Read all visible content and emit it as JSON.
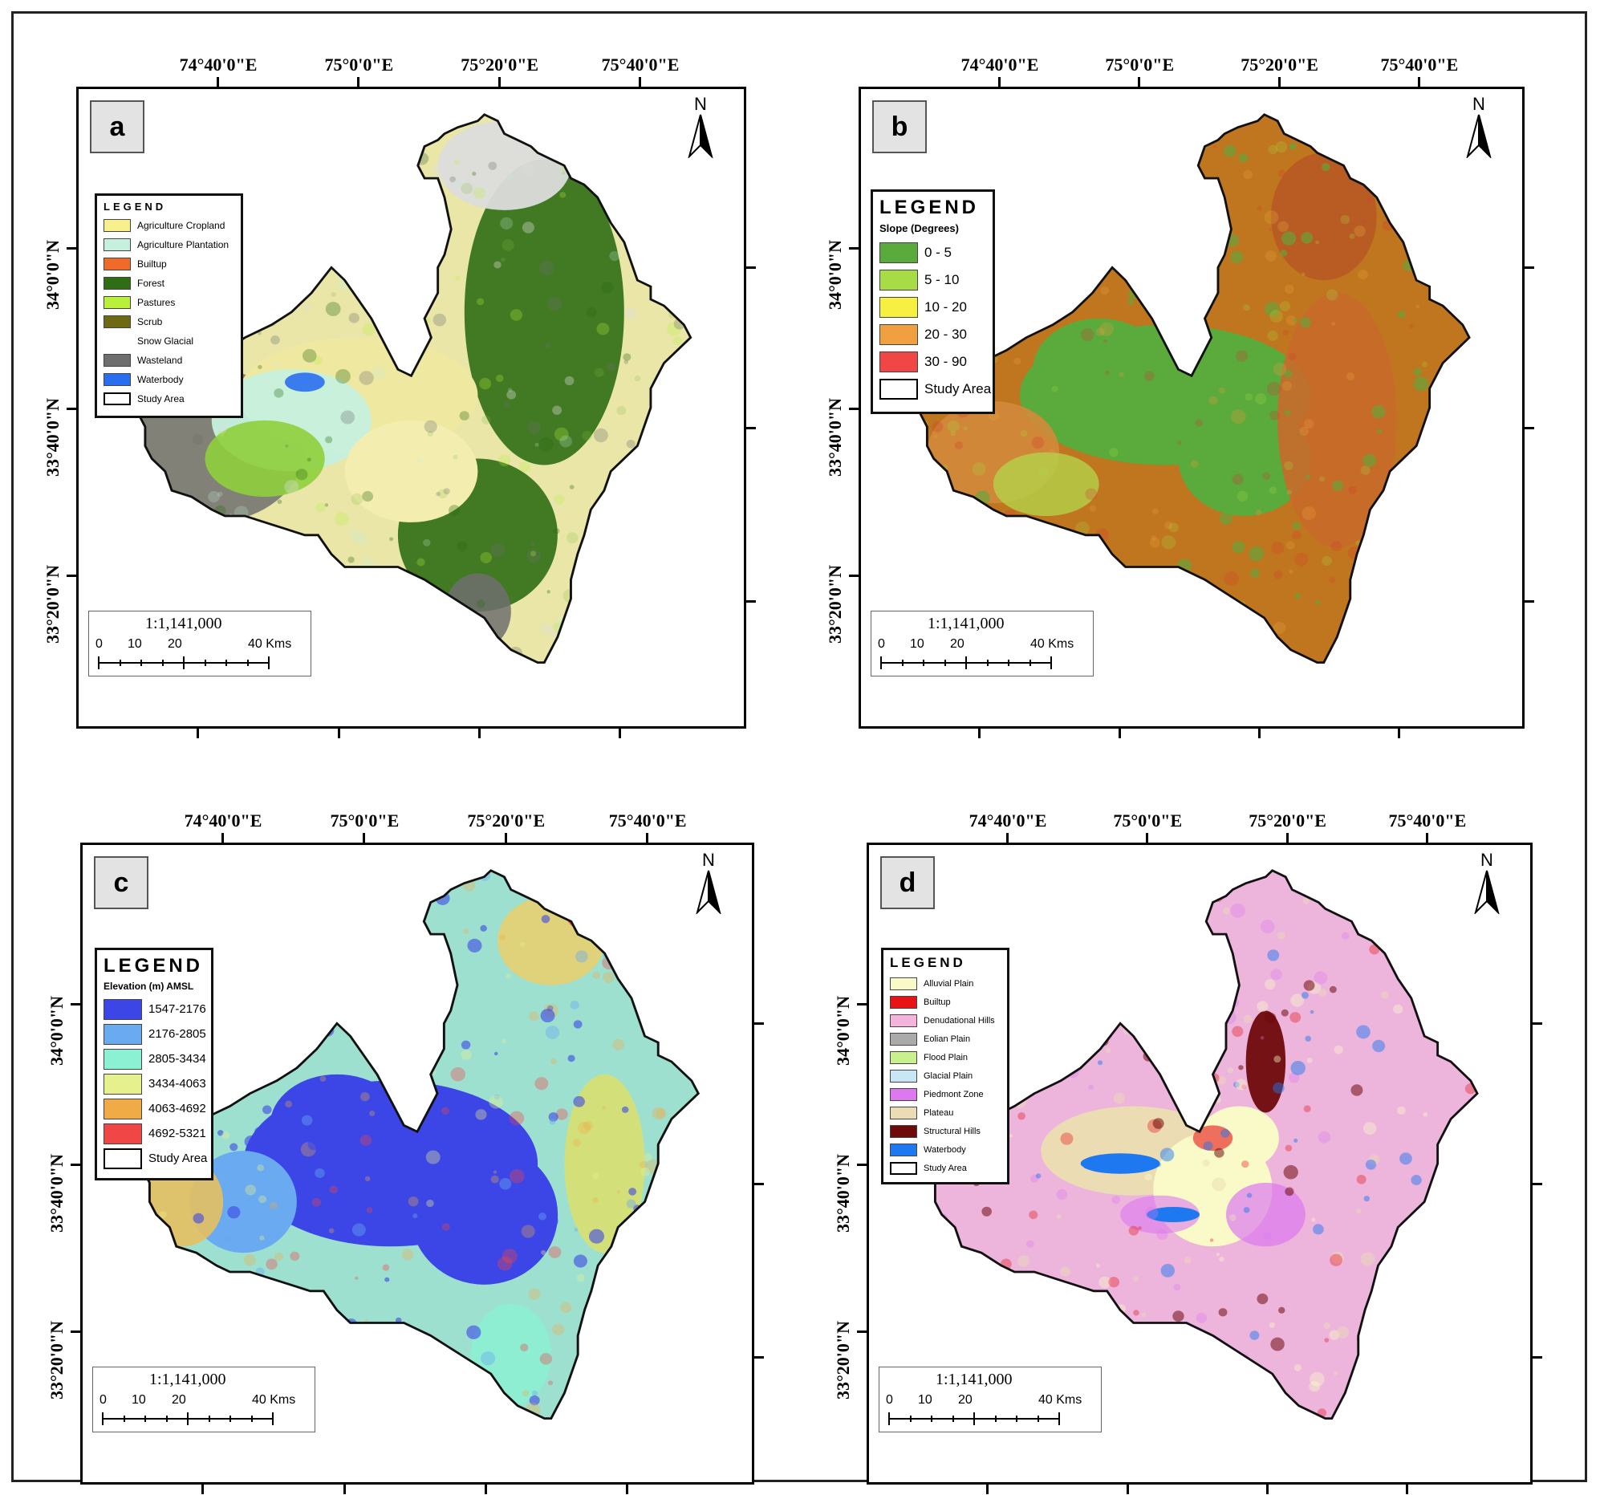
{
  "axes": {
    "lon_labels": [
      "74°40'0\"E",
      "75°0'0\"E",
      "75°20'0\"E",
      "75°40'0\"E"
    ],
    "lat_labels": [
      "34°0'0\"N",
      "33°40'0\"N",
      "33°20'0\"N"
    ]
  },
  "north_label": "N",
  "scale": {
    "ratio": "1:1,141,000",
    "ticks": [
      "0",
      "10",
      "20",
      "40 Kms"
    ]
  },
  "panels": [
    {
      "id": "a",
      "label": "a",
      "legend_title": "LEGEND",
      "legend_subtitle": "",
      "items": [
        {
          "label": "Agriculture Cropland",
          "color": "#f7f08c"
        },
        {
          "label": "Agriculture Plantation",
          "color": "#c5f0de"
        },
        {
          "label": "Builtup",
          "color": "#f06a2a"
        },
        {
          "label": "Forest",
          "color": "#2f6e14"
        },
        {
          "label": "Pastures",
          "color": "#b8f03c"
        },
        {
          "label": "Scrub",
          "color": "#6e6a14"
        },
        {
          "label": "Snow Glacial",
          "color": "#ffffff"
        },
        {
          "label": "Wasteland",
          "color": "#6e6e6e"
        },
        {
          "label": "Waterbody",
          "color": "#2a6ef0"
        },
        {
          "label": "Study Area",
          "color": "#ffffff"
        }
      ]
    },
    {
      "id": "b",
      "label": "b",
      "legend_title": "LEGEND",
      "legend_subtitle": "Slope (Degrees)",
      "items": [
        {
          "label": "0 - 5",
          "color": "#5aaa3c"
        },
        {
          "label": "5 - 10",
          "color": "#a8dc46"
        },
        {
          "label": "10 - 20",
          "color": "#f8f040"
        },
        {
          "label": "20 - 30",
          "color": "#f0a040"
        },
        {
          "label": "30 - 90",
          "color": "#f04646"
        },
        {
          "label": "Study Area",
          "color": "#ffffff"
        }
      ]
    },
    {
      "id": "c",
      "label": "c",
      "legend_title": "LEGEND",
      "legend_subtitle": "Elevation (m) AMSL",
      "items": [
        {
          "label": "1547-2176",
          "color": "#3c46e6"
        },
        {
          "label": "2176-2805",
          "color": "#6aaaf0"
        },
        {
          "label": "2805-3434",
          "color": "#8cf0d2"
        },
        {
          "label": "3434-4063",
          "color": "#e6f08c"
        },
        {
          "label": "4063-4692",
          "color": "#f0aa46"
        },
        {
          "label": "4692-5321",
          "color": "#f04646"
        },
        {
          "label": "Study Area",
          "color": "#ffffff"
        }
      ]
    },
    {
      "id": "d",
      "label": "d",
      "legend_title": "LEGEND",
      "legend_subtitle": "",
      "items": [
        {
          "label": "Alluvial Plain",
          "color": "#fafac8"
        },
        {
          "label": "Builtup",
          "color": "#e61414"
        },
        {
          "label": "Denudational Hills",
          "color": "#f5b4dc"
        },
        {
          "label": "Eolian Plain",
          "color": "#aaaaaa"
        },
        {
          "label": "Flood Plain",
          "color": "#c8f08c"
        },
        {
          "label": "Glacial Plain",
          "color": "#c8e6f5"
        },
        {
          "label": "Piedmont Zone",
          "color": "#dc78f0"
        },
        {
          "label": "Plateau",
          "color": "#ebdcb4"
        },
        {
          "label": "Structural Hills",
          "color": "#6e0a0a"
        },
        {
          "label": "Waterbody",
          "color": "#1e78f0"
        },
        {
          "label": "Study Area",
          "color": "#ffffff"
        }
      ]
    }
  ]
}
